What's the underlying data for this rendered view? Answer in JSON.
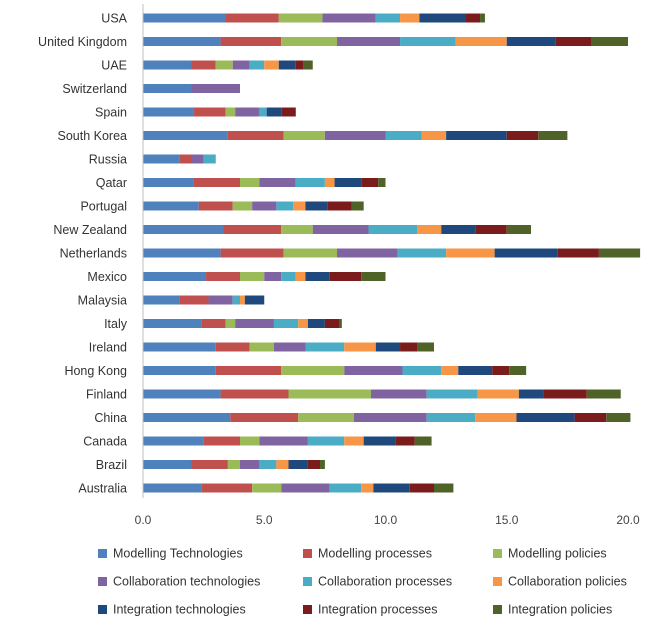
{
  "chart_data": {
    "type": "bar",
    "orientation": "horizontal",
    "stacked": true,
    "title": "",
    "xlabel": "",
    "ylabel": "",
    "xlim": [
      0,
      20
    ],
    "x_ticks": [
      0,
      5,
      10,
      15,
      20
    ],
    "x_tick_labels": [
      "0.0",
      "5.0",
      "10.0",
      "15.0",
      "20.0"
    ],
    "grid": false,
    "legend_position": "bottom",
    "categories": [
      "USA",
      "United Kingdom",
      "UAE",
      "Switzerland",
      "Spain",
      "South Korea",
      "Russia",
      "Qatar",
      "Portugal",
      "New Zealand",
      "Netherlands",
      "Mexico",
      "Malaysia",
      "Italy",
      "Ireland",
      "Hong Kong",
      "Finland",
      "China",
      "Canada",
      "Brazil",
      "Australia"
    ],
    "series": [
      {
        "name": "Modelling Technologies",
        "color": "#4f81bd",
        "values": [
          3.4,
          3.2,
          2.0,
          2.0,
          2.1,
          3.5,
          1.5,
          2.1,
          2.3,
          3.3,
          3.2,
          2.6,
          1.5,
          2.4,
          3.0,
          3.0,
          3.2,
          3.6,
          2.5,
          2.0,
          2.4
        ]
      },
      {
        "name": "Modelling processes",
        "color": "#c0504d",
        "values": [
          2.2,
          2.5,
          1.0,
          0.0,
          1.3,
          2.3,
          0.5,
          1.9,
          1.4,
          2.4,
          2.6,
          1.4,
          1.2,
          1.0,
          1.4,
          2.7,
          2.8,
          2.8,
          1.5,
          1.5,
          2.1
        ]
      },
      {
        "name": "Modelling policies",
        "color": "#9bbb59",
        "values": [
          1.8,
          2.3,
          0.7,
          0.0,
          0.4,
          1.7,
          0.0,
          0.8,
          0.8,
          1.3,
          2.2,
          1.0,
          0.0,
          0.4,
          1.0,
          2.6,
          3.4,
          2.3,
          0.8,
          0.5,
          1.2
        ]
      },
      {
        "name": "Collaboration technologies",
        "color": "#8064a2",
        "values": [
          2.2,
          2.6,
          0.7,
          2.0,
          1.0,
          2.5,
          0.5,
          1.5,
          1.0,
          2.3,
          2.5,
          0.7,
          1.0,
          1.6,
          1.3,
          2.4,
          2.3,
          3.0,
          2.0,
          0.8,
          2.0
        ]
      },
      {
        "name": "Collaboration processes",
        "color": "#4bacc6",
        "values": [
          1.0,
          2.3,
          0.6,
          0.0,
          0.3,
          1.5,
          0.5,
          1.2,
          0.7,
          2.0,
          2.0,
          0.6,
          0.3,
          1.0,
          1.6,
          1.6,
          2.1,
          2.0,
          1.5,
          0.7,
          1.3
        ]
      },
      {
        "name": "Collaboration policies",
        "color": "#f79646",
        "values": [
          0.8,
          2.1,
          0.6,
          0.0,
          0.0,
          1.0,
          0.0,
          0.4,
          0.5,
          1.0,
          2.0,
          0.4,
          0.2,
          0.4,
          1.3,
          0.7,
          1.7,
          1.7,
          0.8,
          0.5,
          0.5
        ]
      },
      {
        "name": "Integration technologies",
        "color": "#1f497d",
        "values": [
          1.9,
          2.0,
          0.7,
          0.0,
          0.6,
          2.5,
          0.0,
          1.1,
          0.9,
          1.4,
          2.6,
          1.0,
          0.8,
          0.7,
          1.0,
          1.4,
          1.0,
          2.4,
          1.3,
          0.8,
          1.5
        ]
      },
      {
        "name": "Integration processes",
        "color": "#7b1c1c",
        "values": [
          0.6,
          1.5,
          0.3,
          0.0,
          0.6,
          1.3,
          0.0,
          0.7,
          1.0,
          1.3,
          1.7,
          1.3,
          0.0,
          0.6,
          0.7,
          0.7,
          1.8,
          1.3,
          0.8,
          0.5,
          1.0
        ]
      },
      {
        "name": "Integration policies",
        "color": "#4f6228",
        "values": [
          0.2,
          1.5,
          0.4,
          0.0,
          0.0,
          1.2,
          0.0,
          0.3,
          0.5,
          1.0,
          1.7,
          1.0,
          0.0,
          0.1,
          0.7,
          0.7,
          1.4,
          1.0,
          0.7,
          0.2,
          0.8
        ]
      }
    ]
  }
}
